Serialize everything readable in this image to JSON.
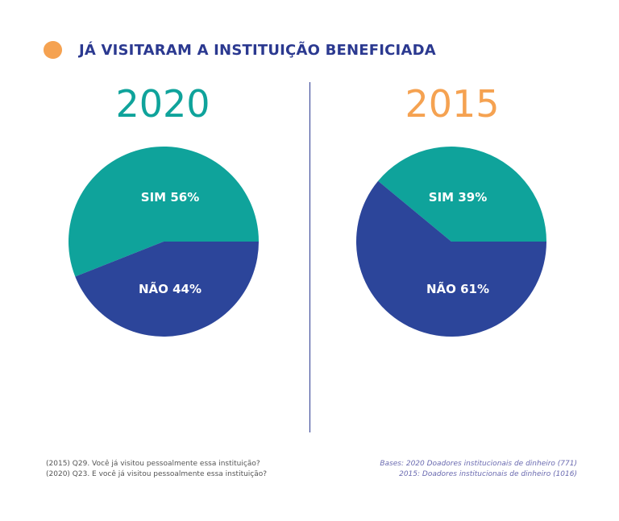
{
  "title": "JÁ VISITARAM A INSTITUIÇÃO BENEFICIADA",
  "colors": {
    "sim": "#0fa39b",
    "nao": "#2c459a",
    "accent_2020": "#0fa39b",
    "accent_2015": "#f5a251",
    "bullet": "#f5a251"
  },
  "chart_data": [
    {
      "type": "pie",
      "title": "2020",
      "slices": [
        {
          "label": "SIM 56%",
          "category": "SIM",
          "value": 56,
          "color": "#0fa39b"
        },
        {
          "label": "NÃO 44%",
          "category": "NÃO",
          "value": 44,
          "color": "#2c459a"
        }
      ]
    },
    {
      "type": "pie",
      "title": "2015",
      "slices": [
        {
          "label": "SIM 39%",
          "category": "SIM",
          "value": 39,
          "color": "#0fa39b"
        },
        {
          "label": "NÃO 61%",
          "category": "NÃO",
          "value": 61,
          "color": "#2c459a"
        }
      ]
    }
  ],
  "footnotes": {
    "questions": [
      "(2015) Q29. Você já visitou pessoalmente essa instituição?",
      "(2020) Q23. E você já visitou pessoalmente essa instituição?"
    ],
    "bases": [
      "Bases: 2020 Doadores institucionais de dinheiro (771)",
      "2015: Doadores institucionais de dinheiro (1016)"
    ]
  }
}
